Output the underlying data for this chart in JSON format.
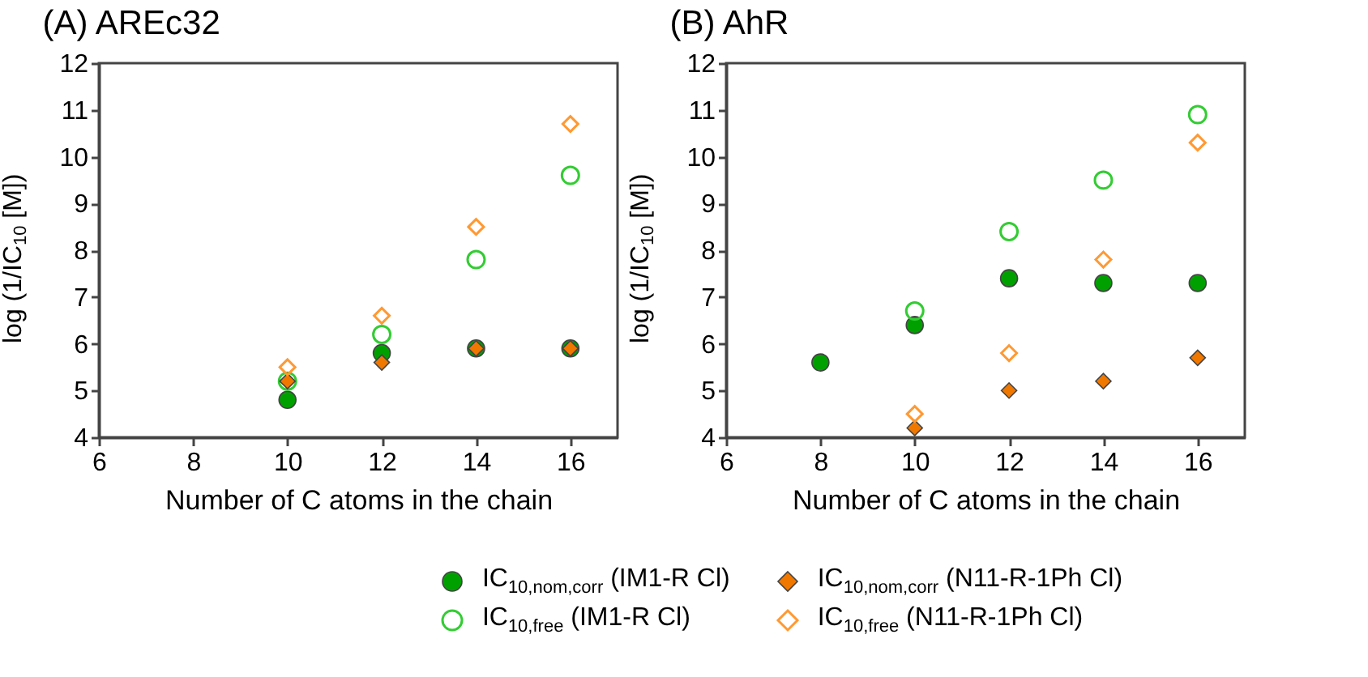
{
  "chart_data": [
    {
      "type": "scatter",
      "title": "(A) AREc32",
      "xlabel": "Number of C atoms in the chain",
      "ylabel": "log (1/IC$_{10}$ [M])",
      "xlim": [
        6,
        17
      ],
      "xticks": [
        6,
        8,
        10,
        12,
        14,
        16
      ],
      "ylim": [
        4,
        12
      ],
      "yticks": [
        4,
        5,
        6,
        7,
        8,
        9,
        10,
        11,
        12
      ],
      "grid": false,
      "legend": "bottom",
      "series": [
        {
          "name": "IC$_{10,nom,corr}$ (IM1-R Cl)",
          "color": "#00a000",
          "marker": "circle",
          "x": [
            10,
            12,
            14,
            16
          ],
          "values": [
            4.8,
            5.8,
            5.9,
            5.9
          ]
        },
        {
          "name": "IC$_{10,free}$ (IM1-R Cl)",
          "color": "#33cc33",
          "marker": "circle",
          "x": [
            10,
            12,
            14,
            16
          ],
          "values": [
            5.2,
            6.2,
            7.8,
            9.6
          ]
        },
        {
          "name": "IC$_{10,nom,corr}$ (N11-R-1Ph Cl)",
          "color": "#f07800",
          "marker": "diamond",
          "x": [
            10,
            12,
            14,
            16
          ],
          "values": [
            5.2,
            5.6,
            5.9,
            5.9
          ]
        },
        {
          "name": "IC$_{10,free}$ (N11-R-1Ph Cl)",
          "color": "#ff9933",
          "marker": "diamond",
          "x": [
            10,
            12,
            14,
            16
          ],
          "values": [
            5.5,
            6.6,
            8.5,
            10.7
          ]
        }
      ]
    },
    {
      "type": "scatter",
      "title": "(B) AhR",
      "xlabel": "Number of C atoms in the chain",
      "ylabel": "log (1/IC$_{10}$ [M])",
      "xlim": [
        6,
        17
      ],
      "xticks": [
        6,
        8,
        10,
        12,
        14,
        16
      ],
      "ylim": [
        4,
        12
      ],
      "yticks": [
        4,
        5,
        6,
        7,
        8,
        9,
        10,
        11,
        12
      ],
      "grid": false,
      "series": [
        {
          "color": "#00a000",
          "marker": "circle",
          "x": [
            8,
            10,
            12,
            14,
            16
          ],
          "values": [
            5.6,
            6.4,
            7.4,
            7.3,
            7.3
          ]
        },
        {
          "color": "#33cc33",
          "marker": "circle",
          "x": [
            10,
            12,
            14,
            16
          ],
          "values": [
            6.7,
            8.4,
            9.5,
            10.9
          ]
        },
        {
          "color": "#f07800",
          "marker": "diamond",
          "x": [
            10,
            12,
            14,
            16
          ],
          "values": [
            4.2,
            5.0,
            5.2,
            5.7
          ]
        },
        {
          "color": "#ff9933",
          "marker": "diamond",
          "x": [
            10,
            12,
            14,
            16
          ],
          "values": [
            4.5,
            5.8,
            7.8,
            10.3
          ]
        }
      ]
    }
  ]
}
